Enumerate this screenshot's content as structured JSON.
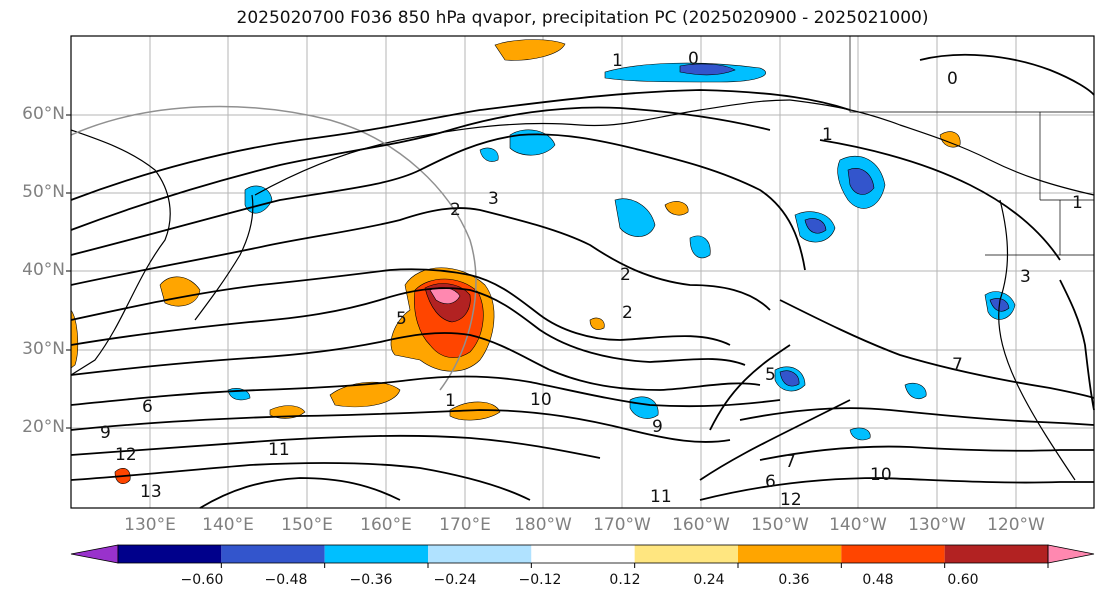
{
  "title": "2025020700 F036 850 hPa qvapor, precipitation PC (2025020900 - 2025021000)",
  "map": {
    "lat_labels": [
      "60°N",
      "50°N",
      "40°N",
      "30°N",
      "20°N"
    ],
    "lon_labels": [
      "130°E",
      "140°E",
      "150°E",
      "160°E",
      "170°E",
      "180°W",
      "170°W",
      "160°W",
      "150°W",
      "140°W",
      "130°W",
      "120°W"
    ],
    "contour_labels": [
      "1",
      "0",
      "0",
      "1",
      "1",
      "2",
      "3",
      "2",
      "2",
      "3",
      "7",
      "6",
      "9",
      "12",
      "13",
      "11",
      "10",
      "9",
      "11",
      "12",
      "7",
      "6",
      "10",
      "5",
      "1",
      "5"
    ]
  },
  "colorbar": {
    "colors": [
      "#9932cc",
      "#00008b",
      "#3355cc",
      "#00bfff",
      "#b0e2ff",
      "#ffffff",
      "#ffe680",
      "#ffa500",
      "#ff4500",
      "#b22222",
      "#ff88b0"
    ],
    "tick_labels": [
      "−0.60",
      "−0.48",
      "−0.36",
      "−0.24",
      "−0.12",
      "0.12",
      "0.24",
      "0.36",
      "0.48",
      "0.60"
    ]
  }
}
